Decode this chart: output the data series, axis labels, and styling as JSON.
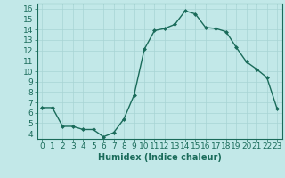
{
  "x": [
    0,
    1,
    2,
    3,
    4,
    5,
    6,
    7,
    8,
    9,
    10,
    11,
    12,
    13,
    14,
    15,
    16,
    17,
    18,
    19,
    20,
    21,
    22,
    23
  ],
  "y": [
    6.5,
    6.5,
    4.7,
    4.7,
    4.4,
    4.4,
    3.7,
    4.1,
    5.4,
    7.7,
    12.1,
    13.9,
    14.1,
    14.5,
    15.8,
    15.5,
    14.2,
    14.1,
    13.8,
    12.3,
    10.9,
    10.2,
    9.4,
    6.4
  ],
  "line_color": "#1a6b5a",
  "marker": "D",
  "marker_size": 2.0,
  "background_color": "#c2e8e8",
  "grid_color": "#a8d4d4",
  "xlabel": "Humidex (Indice chaleur)",
  "xlim": [
    -0.5,
    23.5
  ],
  "ylim": [
    3.5,
    16.5
  ],
  "yticks": [
    4,
    5,
    6,
    7,
    8,
    9,
    10,
    11,
    12,
    13,
    14,
    15,
    16
  ],
  "xticks": [
    0,
    1,
    2,
    3,
    4,
    5,
    6,
    7,
    8,
    9,
    10,
    11,
    12,
    13,
    14,
    15,
    16,
    17,
    18,
    19,
    20,
    21,
    22,
    23
  ],
  "tick_color": "#1a6b5a",
  "label_color": "#1a6b5a",
  "xlabel_fontsize": 7,
  "tick_fontsize": 6.5,
  "linewidth": 1.0
}
